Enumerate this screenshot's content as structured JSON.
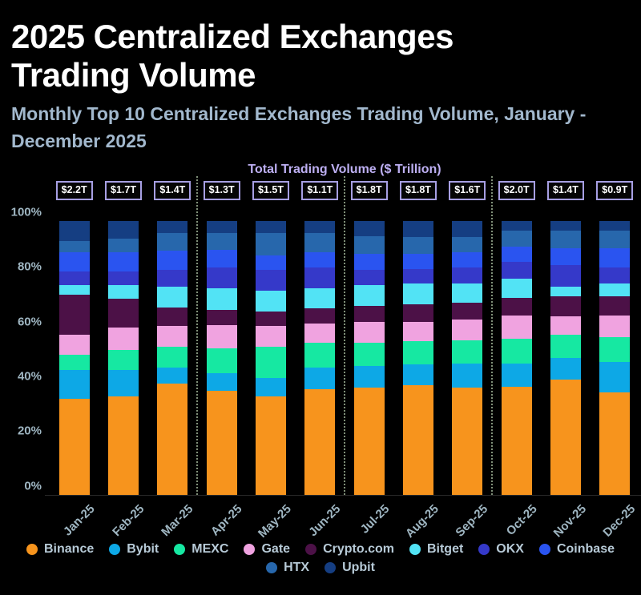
{
  "header": {
    "title": "2025 Centralized Exchanges Trading Volume",
    "subtitle": "Monthly Top 10 Centralized Exchanges Trading Volume, January - December 2025"
  },
  "chart_data": {
    "type": "bar",
    "variant": "stacked-100-percent",
    "title": "Total Trading Volume ($ Trillion)",
    "xlabel": "",
    "ylabel": "",
    "ylim": [
      0,
      100
    ],
    "grid": false,
    "legend_position": "bottom",
    "legend_rows": [
      8,
      2
    ],
    "categories": [
      "Jan-25",
      "Feb-25",
      "Mar-25",
      "Apr-25",
      "May-25",
      "Jun-25",
      "Jul-25",
      "Aug-25",
      "Sep-25",
      "Oct-25",
      "Nov-25",
      "Dec-25"
    ],
    "totals": [
      "$2.2T",
      "$1.7T",
      "$1.4T",
      "$1.3T",
      "$1.5T",
      "$1.1T",
      "$1.8T",
      "$1.8T",
      "$1.6T",
      "$2.0T",
      "$1.4T",
      "$0.9T"
    ],
    "y_ticks": [
      "100%",
      "80%",
      "60%",
      "40%",
      "20%",
      "0%"
    ],
    "quarter_separators_after": [
      2,
      5,
      8
    ],
    "separator_color": "#7F8F78",
    "series": [
      {
        "name": "Binance",
        "color": "#F7941D",
        "values": [
          35,
          36,
          40.5,
          38,
          36,
          38.5,
          39,
          40,
          39,
          39.5,
          42,
          37.5
        ]
      },
      {
        "name": "Bybit",
        "color": "#0DA8E6",
        "values": [
          10.5,
          9.5,
          6,
          6.5,
          6.5,
          8,
          8,
          7.5,
          9,
          8.5,
          8,
          11
        ]
      },
      {
        "name": "MEXC",
        "color": "#16E8A2",
        "values": [
          5.5,
          7.5,
          7.5,
          9,
          11.5,
          9,
          8.5,
          8.5,
          8.5,
          9,
          8.5,
          9
        ]
      },
      {
        "name": "Gate",
        "color": "#F0A3E0",
        "values": [
          7.5,
          8,
          7.5,
          8.5,
          7.5,
          7,
          7.5,
          7,
          7.5,
          8.5,
          6.5,
          8
        ]
      },
      {
        "name": "Crypto.com",
        "color": "#4C1147",
        "values": [
          14.5,
          10.5,
          7,
          5.5,
          5.5,
          5.5,
          6,
          6.5,
          6,
          6.5,
          7.5,
          7
        ]
      },
      {
        "name": "Bitget",
        "color": "#52E3F5",
        "values": [
          3.5,
          5,
          7.5,
          8,
          7.5,
          7.5,
          7.5,
          7.5,
          7,
          7,
          3.5,
          4.5
        ]
      },
      {
        "name": "OKX",
        "color": "#3539C9",
        "values": [
          5,
          5,
          6,
          7.5,
          7.5,
          7.5,
          5.5,
          5.5,
          6,
          6,
          8,
          6
        ]
      },
      {
        "name": "Coinbase",
        "color": "#2A54F0",
        "values": [
          7,
          7,
          7,
          6.5,
          5.5,
          5.5,
          6,
          5.5,
          5.5,
          5.5,
          6,
          7
        ]
      },
      {
        "name": "HTX",
        "color": "#2767AC",
        "values": [
          4,
          5,
          6.5,
          6,
          8,
          7,
          6.5,
          6,
          5.5,
          6,
          6.5,
          6.5
        ]
      },
      {
        "name": "Upbit",
        "color": "#153E82",
        "values": [
          7.5,
          6.5,
          4.5,
          4.5,
          4.5,
          4.5,
          5.5,
          6,
          6,
          3.5,
          3.5,
          3.5
        ]
      }
    ]
  }
}
